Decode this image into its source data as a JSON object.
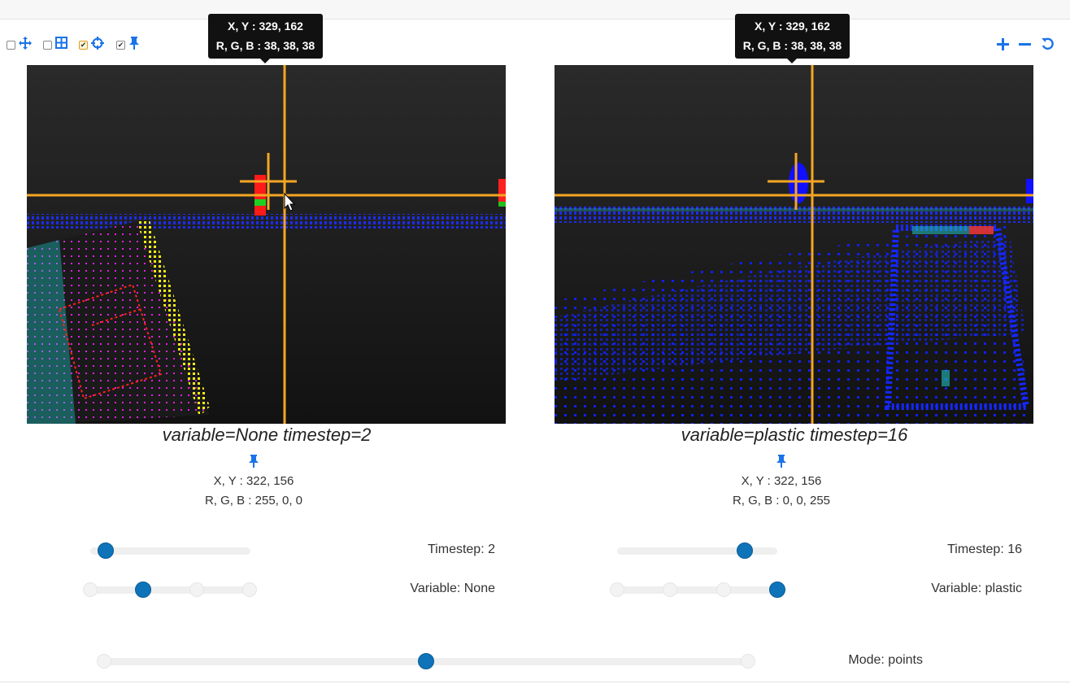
{
  "toolbar": {
    "items": [
      {
        "icon": "move-arrows-icon",
        "checked": false
      },
      {
        "icon": "grid-icon",
        "checked": false
      },
      {
        "icon": "crosshair-icon",
        "checked": true,
        "highlighted": true
      },
      {
        "icon": "pin-icon",
        "checked": true
      }
    ],
    "zoom_in_icon": "plus-icon",
    "zoom_out_icon": "minus-icon",
    "reset_icon": "reset-icon",
    "accent": "#1a73e8"
  },
  "left": {
    "tooltip": {
      "xy": "X, Y : 329, 162",
      "rgb": "R, G, B : 38, 38, 38"
    },
    "caption": "variable=None timestep=2",
    "pinned": {
      "xy": "X, Y : 322, 156",
      "rgb": "R, G, B : 255, 0, 0"
    },
    "timestep_label": "Timestep: 2",
    "variable_label": "Variable: None",
    "timestep_fraction": 0.1,
    "variable_index": 1,
    "variable_stops": 4
  },
  "right": {
    "tooltip": {
      "xy": "X, Y : 329, 162",
      "rgb": "R, G, B : 38, 38, 38"
    },
    "caption": "variable=plastic timestep=16",
    "pinned": {
      "xy": "X, Y : 322, 156",
      "rgb": "R, G, B : 0, 0, 255"
    },
    "timestep_label": "Timestep: 16",
    "variable_label": "Variable: plastic",
    "timestep_fraction": 0.8,
    "variable_index": 3,
    "variable_stops": 4
  },
  "mode": {
    "label": "Mode: points",
    "index": 1,
    "stops": 3
  },
  "colors": {
    "crosshair": "#f5a623",
    "slider_thumb": "#0e73b8"
  }
}
